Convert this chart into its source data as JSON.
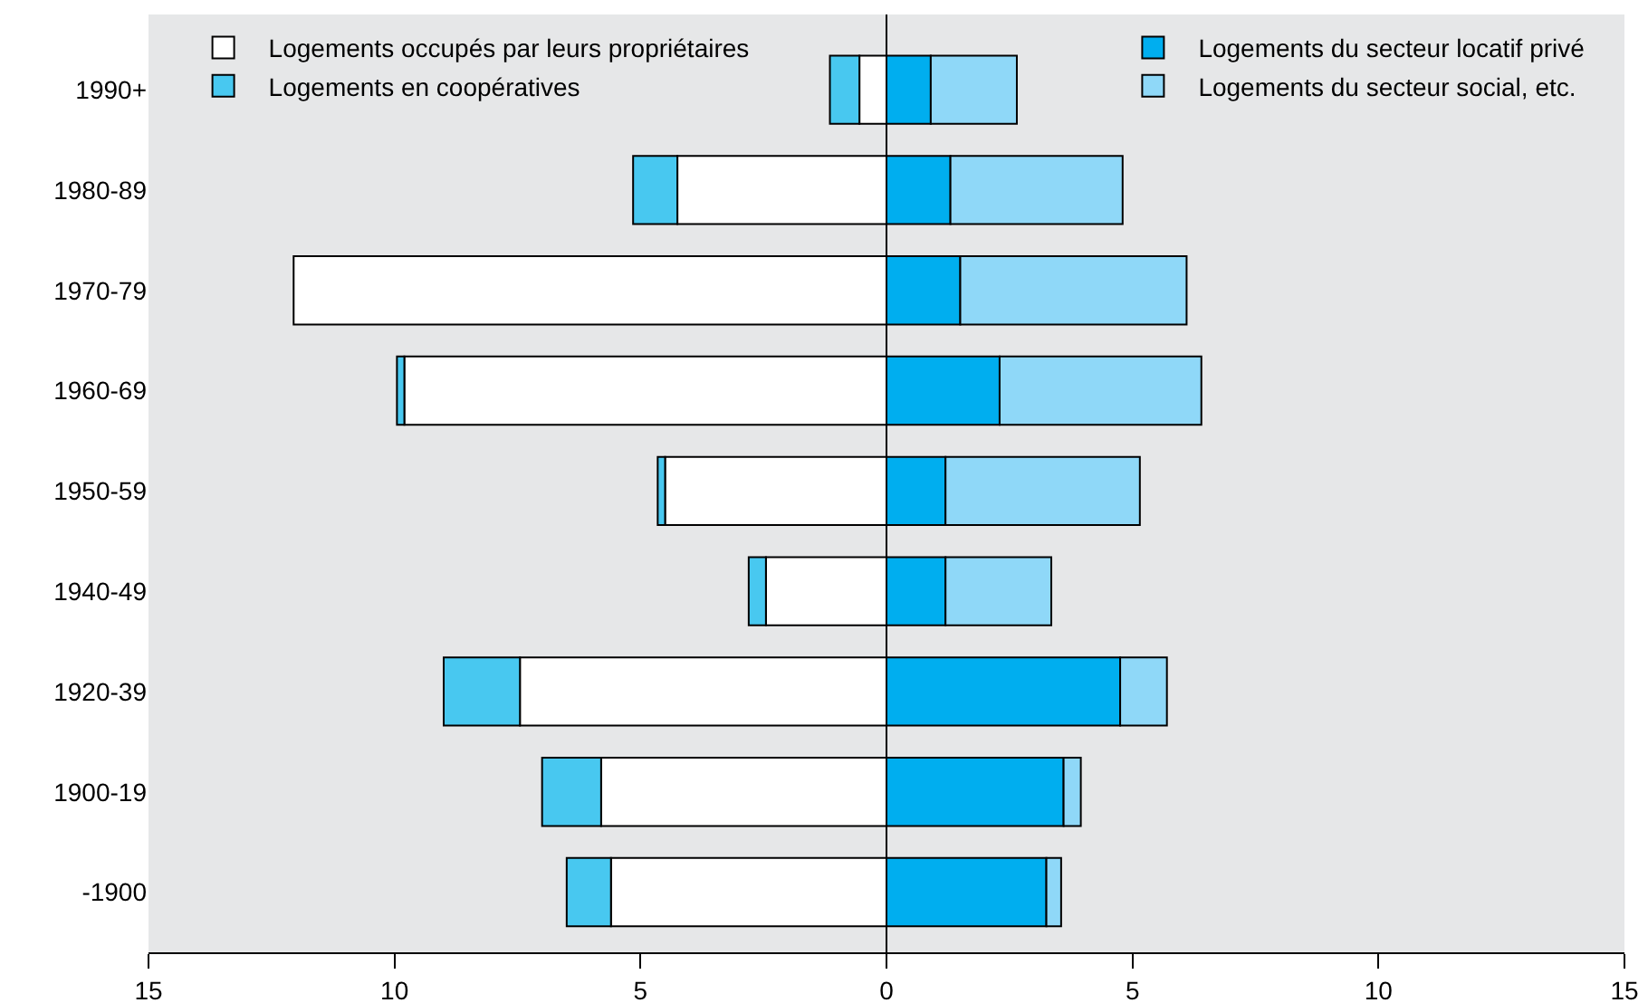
{
  "chart_data": {
    "type": "bar",
    "orientation": "horizontal",
    "stacked": true,
    "categories": [
      "1990+",
      "1980-89",
      "1970-79",
      "1960-69",
      "1950-59",
      "1940-49",
      "1920-39",
      "1900-19",
      "-1900"
    ],
    "series": [
      {
        "name": "Logements occupés par leurs propriétaires",
        "color": "#ffffff",
        "values": [
          -0.55,
          -4.25,
          -12.05,
          -9.8,
          -4.5,
          -2.45,
          -7.45,
          -5.8,
          -5.6
        ]
      },
      {
        "name": "Logements en coopératives",
        "color": "#48c8f0",
        "values": [
          -0.6,
          -0.9,
          null,
          -0.15,
          -0.15,
          -0.35,
          -1.55,
          -1.2,
          -0.9
        ]
      },
      {
        "name": "Logements du secteur locatif privé",
        "color": "#00aeef",
        "values": [
          0.9,
          1.3,
          1.5,
          2.3,
          1.2,
          1.2,
          4.75,
          3.6,
          3.25
        ]
      },
      {
        "name": "Logements du secteur social, etc.",
        "color": "#8fd8f8",
        "values": [
          1.75,
          3.5,
          4.6,
          4.1,
          3.95,
          2.15,
          0.95,
          0.35,
          0.3
        ]
      }
    ],
    "xlim": [
      -15,
      15
    ],
    "xticks": [
      {
        "value": -15,
        "label": "15"
      },
      {
        "value": -10,
        "label": "10"
      },
      {
        "value": -5,
        "label": "5"
      },
      0,
      5,
      10,
      15
    ],
    "ref_lines": [
      {
        "axis": "x",
        "value": 0,
        "color": "#000000"
      }
    ],
    "grid": false,
    "legend": "top"
  }
}
